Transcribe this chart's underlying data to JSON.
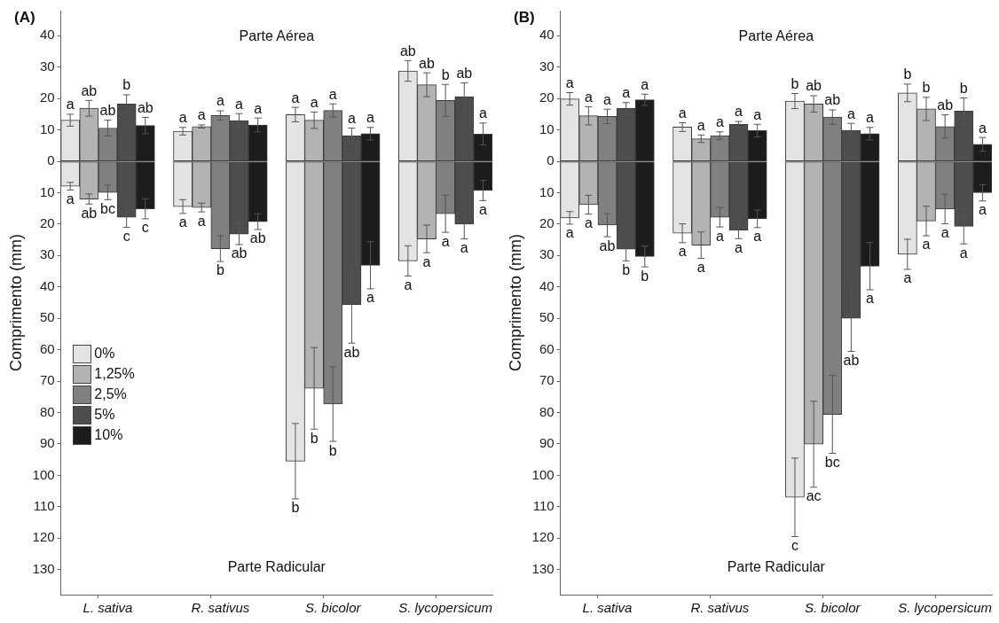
{
  "chart_data": [
    {
      "type": "bar",
      "title": "(A)",
      "ylabel": "Comprimento (mm)",
      "annotations": [
        "Parte Aérea",
        "Parte Radicular"
      ],
      "stacked": true,
      "legend": "left",
      "ylim": [
        -138,
        48
      ],
      "categories": [
        null,
        null,
        "L. sativa",
        null,
        null,
        null,
        null,
        null,
        "R. sativus",
        null,
        null,
        null,
        null,
        null,
        "S. bicolor",
        null,
        null,
        null,
        null,
        null,
        "S. lycopersicum",
        null,
        null
      ],
      "yticks": [
        40,
        30,
        20,
        10,
        0,
        {
          "value": -10,
          "label": "10"
        },
        {
          "value": -20,
          "label": "20"
        },
        {
          "value": -30,
          "label": "30"
        },
        {
          "value": -40,
          "label": "40"
        },
        {
          "value": -50,
          "label": "50"
        },
        {
          "value": -60,
          "label": "60"
        },
        {
          "value": -70,
          "label": "70"
        },
        {
          "value": -80,
          "label": "80"
        },
        {
          "value": -90,
          "label": "90"
        },
        {
          "value": -100,
          "label": "100"
        },
        {
          "value": -110,
          "label": "110"
        },
        {
          "value": -120,
          "label": "120"
        },
        {
          "value": -130,
          "label": "130"
        }
      ],
      "series": [
        {
          "name": "0%",
          "color": "#e4e4e4",
          "values": [
            13.1,
            null,
            null,
            null,
            null,
            null,
            9.6,
            null,
            null,
            null,
            null,
            null,
            14.9,
            null,
            null,
            null,
            null,
            null,
            28.8,
            null,
            null,
            null,
            null
          ],
          "errors": [
            1.9,
            null,
            null,
            null,
            null,
            null,
            1.2,
            null,
            null,
            null,
            null,
            null,
            2.3,
            null,
            null,
            null,
            null,
            null,
            3.3,
            null,
            null,
            null,
            null
          ],
          "value_labels": [
            "a",
            null,
            null,
            null,
            null,
            null,
            "a",
            null,
            null,
            null,
            null,
            null,
            "a",
            null,
            null,
            null,
            null,
            null,
            "ab",
            null,
            null,
            null,
            null
          ]
        },
        {
          "name": "1,25%",
          "color": "#b3b3b3",
          "values": [
            null,
            16.9,
            null,
            null,
            null,
            null,
            null,
            11.1,
            null,
            null,
            null,
            null,
            null,
            13.1,
            null,
            null,
            null,
            null,
            null,
            24.4,
            null,
            null,
            null
          ],
          "errors": [
            null,
            2.5,
            null,
            null,
            null,
            null,
            null,
            0.5,
            null,
            null,
            null,
            null,
            null,
            2.6,
            null,
            null,
            null,
            null,
            null,
            3.8,
            null,
            null,
            null
          ],
          "value_labels": [
            null,
            "ab",
            null,
            null,
            null,
            null,
            null,
            "a",
            null,
            null,
            null,
            null,
            null,
            "a",
            null,
            null,
            null,
            null,
            null,
            "ab",
            null,
            null,
            null
          ]
        },
        {
          "name": "2,5%",
          "color": "#808080",
          "values": [
            null,
            null,
            10.6,
            null,
            null,
            null,
            null,
            null,
            14.6,
            null,
            null,
            null,
            null,
            null,
            16.2,
            null,
            null,
            null,
            null,
            null,
            19.4,
            null,
            null
          ],
          "errors": [
            null,
            null,
            2.5,
            null,
            null,
            null,
            null,
            null,
            1.5,
            null,
            null,
            null,
            null,
            null,
            2.1,
            null,
            null,
            null,
            null,
            null,
            5.1,
            null,
            null
          ],
          "value_labels": [
            null,
            null,
            "ab",
            null,
            null,
            null,
            null,
            null,
            "a",
            null,
            null,
            null,
            null,
            null,
            "a",
            null,
            null,
            null,
            null,
            null,
            "b",
            null,
            null
          ]
        },
        {
          "name": "5%",
          "color": "#4d4d4d",
          "values": [
            null,
            null,
            null,
            18.3,
            null,
            null,
            null,
            null,
            null,
            13.0,
            null,
            null,
            null,
            null,
            null,
            8.1,
            null,
            null,
            null,
            null,
            null,
            20.6,
            null
          ],
          "errors": [
            null,
            null,
            null,
            2.9,
            null,
            null,
            null,
            null,
            null,
            2.2,
            null,
            null,
            null,
            null,
            null,
            2.5,
            null,
            null,
            null,
            null,
            null,
            4.4,
            null
          ],
          "value_labels": [
            null,
            null,
            null,
            "b",
            null,
            null,
            null,
            null,
            null,
            "a",
            null,
            null,
            null,
            null,
            null,
            "a",
            null,
            null,
            null,
            null,
            null,
            "ab",
            null
          ]
        },
        {
          "name": "10%",
          "color": "#1c1c1c",
          "values": [
            null,
            null,
            null,
            null,
            11.4,
            null,
            null,
            null,
            null,
            null,
            11.6,
            null,
            null,
            null,
            null,
            null,
            8.8,
            null,
            null,
            null,
            null,
            null,
            8.7
          ],
          "errors": [
            null,
            null,
            null,
            null,
            2.6,
            null,
            null,
            null,
            null,
            null,
            2.2,
            null,
            null,
            null,
            null,
            null,
            2.0,
            null,
            null,
            null,
            null,
            null,
            3.5
          ],
          "value_labels": [
            null,
            null,
            null,
            null,
            "ab",
            null,
            null,
            null,
            null,
            null,
            "a",
            null,
            null,
            null,
            null,
            null,
            "a",
            null,
            null,
            null,
            null,
            null,
            "a"
          ]
        },
        {
          "color": "#e4e4e4",
          "values": [
            -7.9,
            null,
            null,
            null,
            null,
            null,
            -14.4,
            null,
            null,
            null,
            null,
            null,
            -95.5,
            null,
            null,
            null,
            null,
            null,
            -31.7,
            null,
            null,
            null,
            null
          ],
          "errors": [
            1.2,
            null,
            null,
            null,
            null,
            null,
            2.2,
            null,
            null,
            null,
            null,
            null,
            12.0,
            null,
            null,
            null,
            null,
            null,
            4.8,
            null,
            null,
            null,
            null
          ],
          "value_labels": [
            "a",
            null,
            null,
            null,
            null,
            null,
            "a",
            null,
            null,
            null,
            null,
            null,
            "b",
            null,
            null,
            null,
            null,
            null,
            "a",
            null,
            null,
            null,
            null
          ]
        },
        {
          "color": "#b3b3b3",
          "values": [
            null,
            -12.0,
            null,
            null,
            null,
            null,
            null,
            -14.7,
            null,
            null,
            null,
            null,
            null,
            -72.3,
            null,
            null,
            null,
            null,
            null,
            -24.7,
            null,
            null,
            null
          ],
          "errors": [
            null,
            1.6,
            null,
            null,
            null,
            null,
            null,
            1.4,
            null,
            null,
            null,
            null,
            null,
            13.0,
            null,
            null,
            null,
            null,
            null,
            4.4,
            null,
            null,
            null
          ],
          "value_labels": [
            null,
            "ab",
            null,
            null,
            null,
            null,
            null,
            "a",
            null,
            null,
            null,
            null,
            null,
            "b",
            null,
            null,
            null,
            null,
            null,
            "a",
            null,
            null,
            null
          ]
        },
        {
          "color": "#808080",
          "values": [
            null,
            null,
            -9.9,
            null,
            null,
            null,
            null,
            null,
            -27.8,
            null,
            null,
            null,
            null,
            null,
            -77.3,
            null,
            null,
            null,
            null,
            null,
            -16.7,
            null,
            null
          ],
          "errors": [
            null,
            null,
            2.3,
            null,
            null,
            null,
            null,
            null,
            4.1,
            null,
            null,
            null,
            null,
            null,
            11.9,
            null,
            null,
            null,
            null,
            null,
            5.9,
            null,
            null
          ],
          "value_labels": [
            null,
            null,
            "bc",
            null,
            null,
            null,
            null,
            null,
            "b",
            null,
            null,
            null,
            null,
            null,
            "b",
            null,
            null,
            null,
            null,
            null,
            "a",
            null,
            null
          ]
        },
        {
          "color": "#4d4d4d",
          "values": [
            null,
            null,
            null,
            -17.8,
            null,
            null,
            null,
            null,
            null,
            -23.2,
            null,
            null,
            null,
            null,
            null,
            -45.6,
            null,
            null,
            null,
            null,
            null,
            -20.0,
            null
          ],
          "errors": [
            null,
            null,
            null,
            3.2,
            null,
            null,
            null,
            null,
            null,
            3.3,
            null,
            null,
            null,
            null,
            null,
            12.3,
            null,
            null,
            null,
            null,
            null,
            4.7,
            null
          ],
          "value_labels": [
            null,
            null,
            null,
            "c",
            null,
            null,
            null,
            null,
            null,
            "ab",
            null,
            null,
            null,
            null,
            null,
            "ab",
            null,
            null,
            null,
            null,
            null,
            "a",
            null
          ]
        },
        {
          "color": "#1c1c1c",
          "values": [
            null,
            null,
            null,
            null,
            -15.1,
            null,
            null,
            null,
            null,
            null,
            -19.2,
            null,
            null,
            null,
            null,
            null,
            -33.1,
            null,
            null,
            null,
            null,
            null,
            -9.3
          ],
          "errors": [
            null,
            null,
            null,
            null,
            3.2,
            null,
            null,
            null,
            null,
            null,
            2.5,
            null,
            null,
            null,
            null,
            null,
            7.5,
            null,
            null,
            null,
            null,
            null,
            3.2
          ],
          "value_labels": [
            null,
            null,
            null,
            null,
            "c",
            null,
            null,
            null,
            null,
            null,
            "ab",
            null,
            null,
            null,
            null,
            null,
            "a",
            null,
            null,
            null,
            null,
            null,
            "a"
          ]
        }
      ]
    },
    {
      "type": "bar",
      "title": "(B)",
      "ylabel": "Comprimento (mm)",
      "annotations": [
        "Parte Aérea",
        "Parte Radicular"
      ],
      "stacked": true,
      "ylim": [
        -138,
        48
      ],
      "categories": [
        null,
        null,
        "L. sativa",
        null,
        null,
        null,
        null,
        null,
        "R. sativus",
        null,
        null,
        null,
        null,
        null,
        "S. bicolor",
        null,
        null,
        null,
        null,
        null,
        "S. lycopersicum",
        null,
        null
      ],
      "yticks": [
        40,
        30,
        20,
        10,
        0,
        {
          "value": -10,
          "label": "10"
        },
        {
          "value": -20,
          "label": "20"
        },
        {
          "value": -30,
          "label": "30"
        },
        {
          "value": -40,
          "label": "40"
        },
        {
          "value": -50,
          "label": "50"
        },
        {
          "value": -60,
          "label": "60"
        },
        {
          "value": -70,
          "label": "70"
        },
        {
          "value": -80,
          "label": "80"
        },
        {
          "value": -90,
          "label": "90"
        },
        {
          "value": -100,
          "label": "100"
        },
        {
          "value": -110,
          "label": "110"
        },
        {
          "value": -120,
          "label": "120"
        },
        {
          "value": -130,
          "label": "130"
        }
      ],
      "series": [
        {
          "color": "#e4e4e4",
          "values": [
            19.9,
            null,
            null,
            null,
            null,
            null,
            10.9,
            null,
            null,
            null,
            null,
            null,
            19.2,
            null,
            null,
            null,
            null,
            null,
            21.8,
            null,
            null,
            null,
            null
          ],
          "errors": [
            2.0,
            null,
            null,
            null,
            null,
            null,
            1.4,
            null,
            null,
            null,
            null,
            null,
            2.4,
            null,
            null,
            null,
            null,
            null,
            2.8,
            null,
            null,
            null,
            null
          ],
          "value_labels": [
            "a",
            null,
            null,
            null,
            null,
            null,
            "a",
            null,
            null,
            null,
            null,
            null,
            "b",
            null,
            null,
            null,
            null,
            null,
            "b",
            null,
            null,
            null,
            null
          ]
        },
        {
          "color": "#b3b3b3",
          "values": [
            null,
            14.5,
            null,
            null,
            null,
            null,
            null,
            7.2,
            null,
            null,
            null,
            null,
            null,
            18.3,
            null,
            null,
            null,
            null,
            null,
            16.7,
            null,
            null,
            null
          ],
          "errors": [
            null,
            2.9,
            null,
            null,
            null,
            null,
            null,
            1.2,
            null,
            null,
            null,
            null,
            null,
            2.6,
            null,
            null,
            null,
            null,
            null,
            3.7,
            null,
            null,
            null
          ],
          "value_labels": [
            null,
            "a",
            null,
            null,
            null,
            null,
            null,
            "a",
            null,
            null,
            null,
            null,
            null,
            "ab",
            null,
            null,
            null,
            null,
            null,
            "b",
            null,
            null,
            null
          ]
        },
        {
          "color": "#808080",
          "values": [
            null,
            null,
            14.3,
            null,
            null,
            null,
            null,
            null,
            8.2,
            null,
            null,
            null,
            null,
            null,
            14.1,
            null,
            null,
            null,
            null,
            null,
            11.1,
            null,
            null
          ],
          "errors": [
            null,
            null,
            2.3,
            null,
            null,
            null,
            null,
            null,
            1.2,
            null,
            null,
            null,
            null,
            null,
            2.3,
            null,
            null,
            null,
            null,
            null,
            3.7,
            null,
            null
          ],
          "value_labels": [
            null,
            null,
            "a",
            null,
            null,
            null,
            null,
            null,
            "a",
            null,
            null,
            null,
            null,
            null,
            "ab",
            null,
            null,
            null,
            null,
            null,
            "ab",
            null,
            null
          ]
        },
        {
          "color": "#4d4d4d",
          "values": [
            null,
            null,
            null,
            16.9,
            null,
            null,
            null,
            null,
            null,
            11.8,
            null,
            null,
            null,
            null,
            null,
            9.9,
            null,
            null,
            null,
            null,
            null,
            16.0,
            null
          ],
          "errors": [
            null,
            null,
            null,
            1.8,
            null,
            null,
            null,
            null,
            null,
            0.9,
            null,
            null,
            null,
            null,
            null,
            2.2,
            null,
            null,
            null,
            null,
            null,
            4.2,
            null
          ],
          "value_labels": [
            null,
            null,
            null,
            "a",
            null,
            null,
            null,
            null,
            null,
            "a",
            null,
            null,
            null,
            null,
            null,
            "a",
            null,
            null,
            null,
            null,
            null,
            "b",
            null
          ]
        },
        {
          "color": "#1c1c1c",
          "values": [
            null,
            null,
            null,
            null,
            19.6,
            null,
            null,
            null,
            null,
            null,
            9.8,
            null,
            null,
            null,
            null,
            null,
            8.8,
            null,
            null,
            null,
            null,
            null,
            5.4
          ],
          "errors": [
            null,
            null,
            null,
            null,
            1.8,
            null,
            null,
            null,
            null,
            null,
            2.0,
            null,
            null,
            null,
            null,
            null,
            2.0,
            null,
            null,
            null,
            null,
            null,
            2.2
          ],
          "value_labels": [
            null,
            null,
            null,
            null,
            "a",
            null,
            null,
            null,
            null,
            null,
            "a",
            null,
            null,
            null,
            null,
            null,
            "a",
            null,
            null,
            null,
            null,
            null,
            "a"
          ]
        },
        {
          "color": "#e4e4e4",
          "values": [
            -18.0,
            null,
            null,
            null,
            null,
            null,
            -22.9,
            null,
            null,
            null,
            null,
            null,
            -107.0,
            null,
            null,
            null,
            null,
            null,
            -29.6,
            null,
            null,
            null,
            null
          ],
          "errors": [
            2.0,
            null,
            null,
            null,
            null,
            null,
            3.0,
            null,
            null,
            null,
            null,
            null,
            12.5,
            null,
            null,
            null,
            null,
            null,
            4.8,
            null,
            null,
            null,
            null
          ],
          "value_labels": [
            "a",
            null,
            null,
            null,
            null,
            null,
            "a",
            null,
            null,
            null,
            null,
            null,
            "c",
            null,
            null,
            null,
            null,
            null,
            "a",
            null,
            null,
            null,
            null
          ]
        },
        {
          "color": "#b3b3b3",
          "values": [
            null,
            -13.8,
            null,
            null,
            null,
            null,
            null,
            -26.7,
            null,
            null,
            null,
            null,
            null,
            -90.1,
            null,
            null,
            null,
            null,
            null,
            -19.0,
            null,
            null,
            null
          ],
          "errors": [
            null,
            3.0,
            null,
            null,
            null,
            null,
            null,
            4.2,
            null,
            null,
            null,
            null,
            null,
            13.7,
            null,
            null,
            null,
            null,
            null,
            4.7,
            null,
            null,
            null
          ],
          "value_labels": [
            null,
            "a",
            null,
            null,
            null,
            null,
            null,
            "a",
            null,
            null,
            null,
            null,
            null,
            "ac",
            null,
            null,
            null,
            null,
            null,
            "a",
            null,
            null,
            null
          ]
        },
        {
          "color": "#808080",
          "values": [
            null,
            null,
            -20.3,
            null,
            null,
            null,
            null,
            null,
            -17.8,
            null,
            null,
            null,
            null,
            null,
            -80.6,
            null,
            null,
            null,
            null,
            null,
            -15.2,
            null,
            null
          ],
          "errors": [
            null,
            null,
            3.7,
            null,
            null,
            null,
            null,
            null,
            3.1,
            null,
            null,
            null,
            null,
            null,
            12.4,
            null,
            null,
            null,
            null,
            null,
            4.7,
            null,
            null
          ],
          "value_labels": [
            null,
            null,
            "ab",
            null,
            null,
            null,
            null,
            null,
            "a",
            null,
            null,
            null,
            null,
            null,
            "bc",
            null,
            null,
            null,
            null,
            null,
            "a",
            null,
            null
          ]
        },
        {
          "color": "#4d4d4d",
          "values": [
            null,
            null,
            null,
            -28.0,
            null,
            null,
            null,
            null,
            null,
            -21.9,
            null,
            null,
            null,
            null,
            null,
            -50.0,
            null,
            null,
            null,
            null,
            null,
            -20.7,
            null
          ],
          "errors": [
            null,
            null,
            null,
            3.7,
            null,
            null,
            null,
            null,
            null,
            2.7,
            null,
            null,
            null,
            null,
            null,
            10.5,
            null,
            null,
            null,
            null,
            null,
            5.6,
            null
          ],
          "value_labels": [
            null,
            null,
            null,
            "b",
            null,
            null,
            null,
            null,
            null,
            "a",
            null,
            null,
            null,
            null,
            null,
            "ab",
            null,
            null,
            null,
            null,
            null,
            "a",
            null
          ]
        },
        {
          "color": "#1c1c1c",
          "values": [
            null,
            null,
            null,
            null,
            -30.3,
            null,
            null,
            null,
            null,
            null,
            -18.3,
            null,
            null,
            null,
            null,
            null,
            -33.4,
            null,
            null,
            null,
            null,
            null,
            -10.0
          ],
          "errors": [
            null,
            null,
            null,
            null,
            3.3,
            null,
            null,
            null,
            null,
            null,
            2.8,
            null,
            null,
            null,
            null,
            null,
            7.5,
            null,
            null,
            null,
            null,
            null,
            2.6
          ],
          "value_labels": [
            null,
            null,
            null,
            null,
            "b",
            null,
            null,
            null,
            null,
            null,
            "a",
            null,
            null,
            null,
            null,
            null,
            "a",
            null,
            null,
            null,
            null,
            null,
            "a"
          ]
        }
      ]
    }
  ]
}
